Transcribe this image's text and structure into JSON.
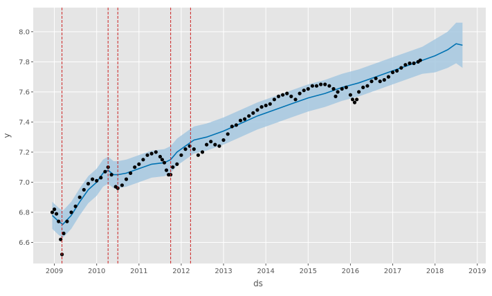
{
  "chart_data": {
    "type": "line",
    "xlabel": "ds",
    "ylabel": "y",
    "xlim": [
      2008.5,
      2019.2
    ],
    "ylim": [
      6.46,
      8.16
    ],
    "x_ticks": [
      2009,
      2010,
      2011,
      2012,
      2013,
      2014,
      2015,
      2016,
      2017,
      2018,
      2019
    ],
    "x_tick_labels": [
      "2009",
      "2010",
      "2011",
      "2012",
      "2013",
      "2014",
      "2015",
      "2016",
      "2017",
      "2018",
      "2019"
    ],
    "y_ticks": [
      6.6,
      6.8,
      7.0,
      7.2,
      7.4,
      7.6,
      7.8,
      8.0
    ],
    "y_tick_labels": [
      "6.6",
      "6.8",
      "7.0",
      "7.2",
      "7.4",
      "7.6",
      "7.8",
      "8.0"
    ],
    "grid": true,
    "changepoints": [
      2009.18,
      2010.27,
      2010.5,
      2011.75,
      2012.22
    ],
    "colors": {
      "plot_background": "#e5e5e5",
      "grid": "#ffffff",
      "forecast_line": "#0072b2",
      "uncertainty_band": "#a6c8e0",
      "observed_points": "#000000",
      "changepoint_lines": "#cc2222"
    },
    "observed": {
      "x": [
        2008.95,
        2009.0,
        2009.05,
        2009.1,
        2009.15,
        2009.18,
        2009.22,
        2009.3,
        2009.4,
        2009.5,
        2009.6,
        2009.7,
        2009.8,
        2009.9,
        2010.0,
        2010.1,
        2010.2,
        2010.27,
        2010.35,
        2010.45,
        2010.5,
        2010.6,
        2010.7,
        2010.8,
        2010.9,
        2011.0,
        2011.1,
        2011.2,
        2011.3,
        2011.4,
        2011.5,
        2011.55,
        2011.6,
        2011.65,
        2011.7,
        2011.75,
        2011.8,
        2011.9,
        2012.0,
        2012.1,
        2012.2,
        2012.3,
        2012.4,
        2012.5,
        2012.6,
        2012.7,
        2012.8,
        2012.9,
        2013.0,
        2013.1,
        2013.2,
        2013.3,
        2013.4,
        2013.5,
        2013.6,
        2013.7,
        2013.8,
        2013.9,
        2014.0,
        2014.1,
        2014.2,
        2014.3,
        2014.4,
        2014.5,
        2014.6,
        2014.7,
        2014.8,
        2014.9,
        2015.0,
        2015.1,
        2015.2,
        2015.3,
        2015.4,
        2015.5,
        2015.6,
        2015.65,
        2015.7,
        2015.8,
        2015.9,
        2016.0,
        2016.05,
        2016.1,
        2016.15,
        2016.2,
        2016.3,
        2016.4,
        2016.5,
        2016.6,
        2016.7,
        2016.8,
        2016.9,
        2017.0,
        2017.1,
        2017.2,
        2017.3,
        2017.4,
        2017.5,
        2017.6,
        2017.65
      ],
      "y": [
        6.8,
        6.82,
        6.79,
        6.74,
        6.62,
        6.52,
        6.66,
        6.74,
        6.8,
        6.84,
        6.9,
        6.95,
        6.99,
        7.02,
        7.01,
        7.03,
        7.07,
        7.1,
        7.05,
        6.97,
        6.96,
        6.98,
        7.02,
        7.06,
        7.1,
        7.12,
        7.15,
        7.18,
        7.19,
        7.2,
        7.17,
        7.15,
        7.13,
        7.08,
        7.05,
        7.05,
        7.1,
        7.12,
        7.18,
        7.22,
        7.24,
        7.22,
        7.18,
        7.2,
        7.25,
        7.27,
        7.25,
        7.24,
        7.28,
        7.32,
        7.37,
        7.38,
        7.41,
        7.42,
        7.44,
        7.46,
        7.48,
        7.5,
        7.51,
        7.52,
        7.55,
        7.57,
        7.58,
        7.59,
        7.57,
        7.55,
        7.59,
        7.61,
        7.62,
        7.64,
        7.64,
        7.65,
        7.65,
        7.64,
        7.62,
        7.57,
        7.6,
        7.62,
        7.63,
        7.58,
        7.55,
        7.53,
        7.55,
        7.6,
        7.63,
        7.64,
        7.67,
        7.69,
        7.67,
        7.68,
        7.7,
        7.73,
        7.74,
        7.76,
        7.78,
        7.79,
        7.79,
        7.8,
        7.81
      ]
    },
    "forecast": {
      "x": [
        2008.95,
        2009.1,
        2009.2,
        2009.4,
        2009.6,
        2009.8,
        2010.0,
        2010.15,
        2010.27,
        2010.4,
        2010.5,
        2010.7,
        2011.0,
        2011.3,
        2011.6,
        2011.75,
        2011.9,
        2012.1,
        2012.3,
        2012.6,
        2013.0,
        2013.4,
        2013.8,
        2014.2,
        2014.6,
        2015.0,
        2015.4,
        2015.8,
        2016.2,
        2016.6,
        2017.0,
        2017.4,
        2017.7,
        2018.0,
        2018.3,
        2018.5,
        2018.65
      ],
      "yhat": [
        6.78,
        6.74,
        6.72,
        6.78,
        6.87,
        6.95,
        7.0,
        7.06,
        7.08,
        7.05,
        7.05,
        7.06,
        7.09,
        7.12,
        7.13,
        7.15,
        7.2,
        7.24,
        7.28,
        7.3,
        7.34,
        7.39,
        7.44,
        7.48,
        7.52,
        7.56,
        7.59,
        7.63,
        7.66,
        7.7,
        7.74,
        7.78,
        7.81,
        7.84,
        7.88,
        7.92,
        7.91
      ],
      "lower": [
        6.69,
        6.65,
        6.63,
        6.69,
        6.78,
        6.86,
        6.91,
        6.97,
        6.99,
        6.96,
        6.96,
        6.97,
        7.0,
        7.03,
        7.04,
        7.06,
        7.11,
        7.15,
        7.19,
        7.21,
        7.25,
        7.3,
        7.35,
        7.39,
        7.43,
        7.47,
        7.5,
        7.54,
        7.57,
        7.61,
        7.65,
        7.69,
        7.72,
        7.73,
        7.76,
        7.79,
        7.76
      ],
      "upper": [
        6.87,
        6.83,
        6.81,
        6.87,
        6.96,
        7.04,
        7.09,
        7.15,
        7.17,
        7.14,
        7.14,
        7.15,
        7.18,
        7.21,
        7.22,
        7.24,
        7.29,
        7.33,
        7.37,
        7.39,
        7.43,
        7.48,
        7.53,
        7.57,
        7.61,
        7.65,
        7.68,
        7.72,
        7.75,
        7.79,
        7.83,
        7.87,
        7.9,
        7.95,
        8.0,
        8.06,
        8.06
      ]
    }
  }
}
